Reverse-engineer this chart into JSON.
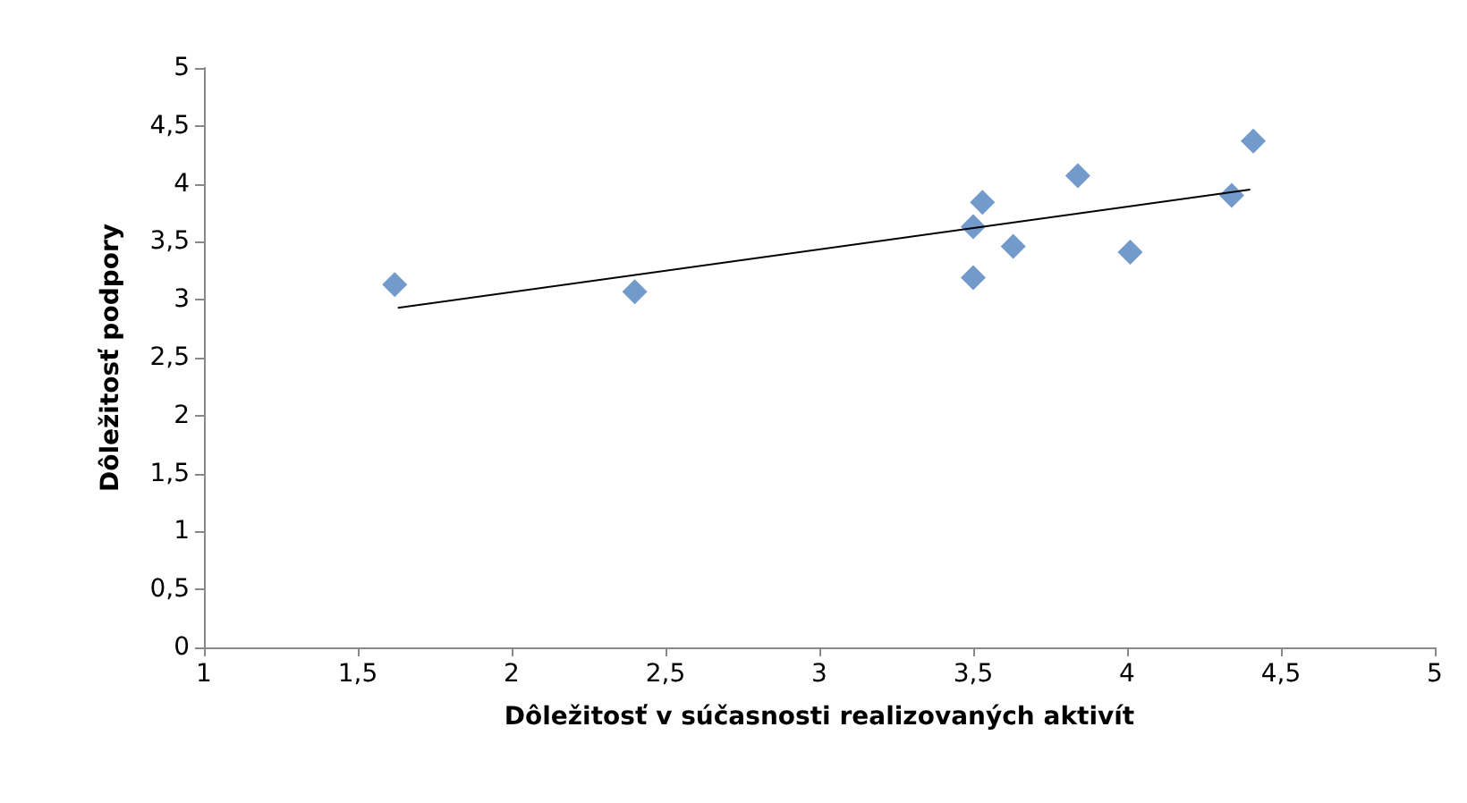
{
  "chart_data": {
    "type": "scatter",
    "xlabel": "Dôležitosť v súčasnosti realizovaných aktivít",
    "ylabel": "Dôležitosť podpory",
    "marker": "diamond",
    "grid": false,
    "series": [
      {
        "color": "#4f81bd",
        "x": [
          1.62,
          2.4,
          3.5,
          3.53,
          3.5,
          3.63,
          3.84,
          4.01,
          4.34,
          4.41
        ],
        "values": [
          3.13,
          3.07,
          3.63,
          3.84,
          3.19,
          3.46,
          4.07,
          3.41,
          3.9,
          4.37
        ]
      },
      {
        "type": "line",
        "color": "#000000",
        "marker": "none",
        "x": [
          1.63,
          4.4
        ],
        "values": [
          2.93,
          3.95
        ]
      }
    ],
    "xlim": [
      1,
      5
    ],
    "xticks": [
      1,
      {
        "value": 1.5,
        "label": "1,5"
      },
      2,
      {
        "value": 2.5,
        "label": "2,5"
      },
      3,
      {
        "value": 3.5,
        "label": "3,5"
      },
      4,
      {
        "value": 4.5,
        "label": "4,5"
      },
      5
    ],
    "ylim": [
      0,
      5
    ],
    "yticks": [
      0,
      {
        "value": 0.5,
        "label": "0,5"
      },
      1,
      {
        "value": 1.5,
        "label": "1,5"
      },
      2,
      {
        "value": 2.5,
        "label": "2,5"
      },
      3,
      {
        "value": 3.5,
        "label": "3,5"
      },
      4,
      {
        "value": 4.5,
        "label": "4,5"
      },
      5
    ]
  }
}
